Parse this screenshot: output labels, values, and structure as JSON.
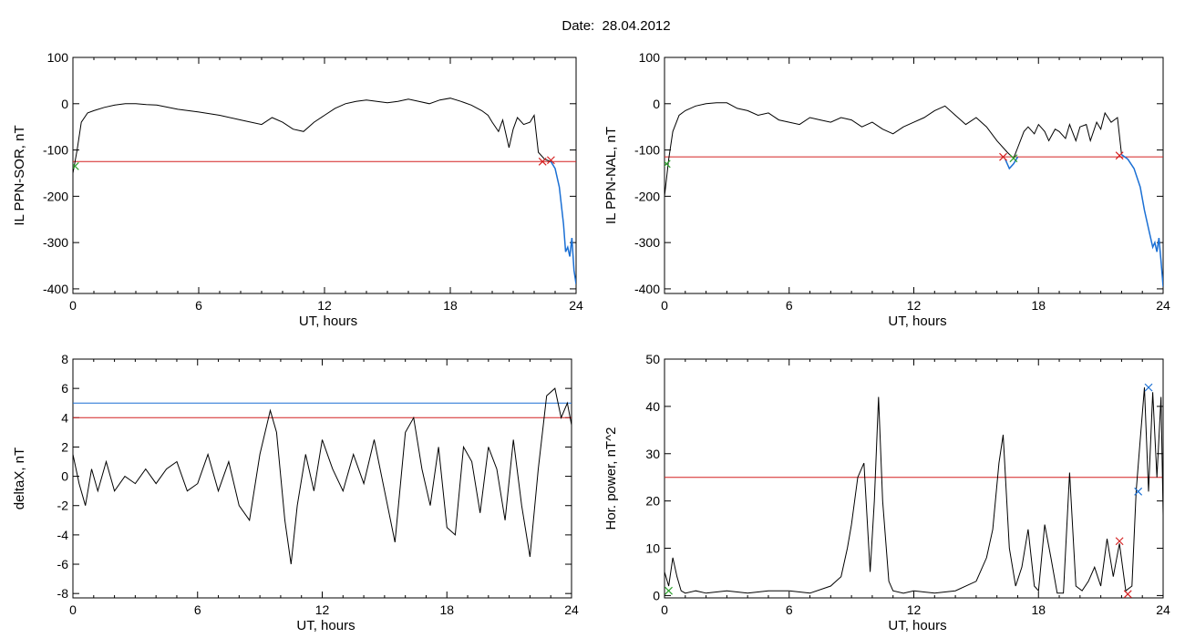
{
  "figure_title": "Date:  28.04.2012",
  "colors": {
    "threshold_red": "#d42020",
    "threshold_blue": "#1a6fd4",
    "trace_blue": "#1a6fd4",
    "marker_green": "#2ca02c",
    "trace": "#000000"
  },
  "chart_data": [
    {
      "type": "line",
      "xlabel": "UT, hours",
      "ylabel": "IL PPN-SOR, nT",
      "xlim": [
        0,
        24
      ],
      "ylim": [
        -410,
        100
      ],
      "xticks": [
        0,
        6,
        12,
        18,
        24
      ],
      "yticks": [
        100,
        0,
        -100,
        -200,
        -300,
        -400
      ],
      "x": [
        0,
        0.2,
        0.4,
        0.7,
        1.0,
        1.5,
        2.0,
        2.5,
        3.0,
        3.5,
        4.0,
        5.0,
        6.0,
        7.0,
        8.0,
        9.0,
        9.5,
        10.0,
        10.5,
        11.0,
        11.5,
        12.0,
        12.5,
        13.0,
        13.5,
        14.0,
        14.5,
        15.0,
        15.5,
        16.0,
        16.5,
        17.0,
        17.5,
        18.0,
        18.5,
        19.0,
        19.5,
        19.8,
        20.0,
        20.3,
        20.5,
        20.8,
        21.0,
        21.2,
        21.5,
        21.8,
        22.0,
        22.2,
        22.5,
        22.8
      ],
      "y": [
        -150,
        -100,
        -40,
        -20,
        -15,
        -8,
        -3,
        0,
        0,
        -2,
        -3,
        -12,
        -18,
        -25,
        -35,
        -45,
        -30,
        -40,
        -55,
        -60,
        -40,
        -25,
        -10,
        0,
        5,
        8,
        5,
        2,
        5,
        10,
        5,
        0,
        8,
        12,
        5,
        -3,
        -15,
        -25,
        -40,
        -60,
        -35,
        -95,
        -55,
        -30,
        -45,
        -40,
        -25,
        -105,
        -120,
        -125
      ],
      "series": [
        {
          "color": "#1a6fd4",
          "x": [
            22.8,
            23.0,
            23.2,
            23.4,
            23.5,
            23.6,
            23.7,
            23.8,
            23.9,
            24.0
          ],
          "y": [
            -125,
            -140,
            -180,
            -260,
            -320,
            -310,
            -330,
            -290,
            -360,
            -390
          ]
        }
      ],
      "hlines": [
        {
          "y": -125,
          "color": "#d42020"
        }
      ],
      "markers": [
        {
          "x": 0.1,
          "y": -135,
          "color": "#2ca02c"
        },
        {
          "x": 22.4,
          "y": -125,
          "color": "#d42020"
        },
        {
          "x": 22.8,
          "y": -122,
          "color": "#d42020"
        }
      ]
    },
    {
      "type": "line",
      "xlabel": "UT, hours",
      "ylabel": "IL PPN-NAL, nT",
      "xlim": [
        0,
        24
      ],
      "ylim": [
        -410,
        100
      ],
      "xticks": [
        0,
        6,
        12,
        18,
        24
      ],
      "yticks": [
        100,
        0,
        -100,
        -200,
        -300,
        -400
      ],
      "x": [
        0,
        0.2,
        0.4,
        0.7,
        1.0,
        1.5,
        2.0,
        2.5,
        3.0,
        3.5,
        4.0,
        4.5,
        5.0,
        5.5,
        6.0,
        6.5,
        7.0,
        7.5,
        8.0,
        8.5,
        9.0,
        9.5,
        10.0,
        10.5,
        11.0,
        11.5,
        12.0,
        12.5,
        13.0,
        13.5,
        14.0,
        14.5,
        15.0,
        15.5,
        16.0,
        16.5,
        16.8,
        17.0,
        17.3,
        17.5,
        17.8,
        18.0,
        18.3,
        18.5,
        18.8,
        19.0,
        19.3,
        19.5,
        19.8,
        20.0,
        20.3,
        20.5,
        20.8,
        21.0,
        21.2,
        21.5,
        21.8,
        22.0
      ],
      "y": [
        -200,
        -120,
        -60,
        -25,
        -15,
        -5,
        0,
        2,
        2,
        -10,
        -15,
        -25,
        -20,
        -35,
        -40,
        -45,
        -30,
        -35,
        -40,
        -30,
        -35,
        -50,
        -40,
        -55,
        -65,
        -50,
        -40,
        -30,
        -15,
        -5,
        -25,
        -45,
        -30,
        -50,
        -80,
        -105,
        -118,
        -95,
        -60,
        -50,
        -65,
        -45,
        -60,
        -80,
        -55,
        -60,
        -75,
        -45,
        -80,
        -50,
        -45,
        -80,
        -40,
        -55,
        -20,
        -40,
        -30,
        -110
      ],
      "series": [
        {
          "color": "#1a6fd4",
          "x": [
            22.0,
            22.3,
            22.6,
            22.9,
            23.1,
            23.3,
            23.5,
            23.6,
            23.7,
            23.8,
            23.9,
            24.0
          ],
          "y": [
            -110,
            -120,
            -140,
            -180,
            -230,
            -270,
            -310,
            -300,
            -320,
            -290,
            -340,
            -395
          ]
        },
        {
          "color": "#1a6fd4",
          "x": [
            16.4,
            16.6,
            16.8,
            17.0
          ],
          "y": [
            -120,
            -140,
            -130,
            -115
          ]
        }
      ],
      "hlines": [
        {
          "y": -115,
          "color": "#d42020"
        }
      ],
      "markers": [
        {
          "x": 0.1,
          "y": -130,
          "color": "#2ca02c"
        },
        {
          "x": 16.3,
          "y": -115,
          "color": "#d42020"
        },
        {
          "x": 16.8,
          "y": -118,
          "color": "#2ca02c"
        },
        {
          "x": 21.9,
          "y": -112,
          "color": "#d42020"
        }
      ]
    },
    {
      "type": "line",
      "xlabel": "UT, hours",
      "ylabel": "deltaX, nT",
      "xlim": [
        0,
        24
      ],
      "ylim": [
        -8.3,
        8
      ],
      "xticks": [
        0,
        6,
        12,
        18,
        24
      ],
      "yticks": [
        8,
        6,
        4,
        2,
        0,
        -2,
        -4,
        -6,
        -8
      ],
      "x": [
        0,
        0.3,
        0.6,
        0.9,
        1.2,
        1.6,
        2.0,
        2.5,
        3.0,
        3.5,
        4.0,
        4.5,
        5.0,
        5.5,
        6.0,
        6.5,
        7.0,
        7.5,
        8.0,
        8.5,
        9.0,
        9.5,
        9.8,
        10.2,
        10.5,
        10.8,
        11.2,
        11.6,
        12.0,
        12.5,
        13.0,
        13.5,
        14.0,
        14.5,
        15.0,
        15.5,
        16.0,
        16.4,
        16.8,
        17.2,
        17.6,
        18.0,
        18.4,
        18.8,
        19.2,
        19.6,
        20.0,
        20.4,
        20.8,
        21.2,
        21.6,
        22.0,
        22.4,
        22.8,
        23.2,
        23.5,
        23.8,
        24.0
      ],
      "y": [
        1.5,
        -0.5,
        -2.0,
        0.5,
        -1.0,
        1.0,
        -1.0,
        0.0,
        -0.5,
        0.5,
        -0.5,
        0.5,
        1.0,
        -1.0,
        -0.5,
        1.5,
        -1.0,
        1.0,
        -2.0,
        -3.0,
        1.5,
        4.5,
        3.0,
        -3.0,
        -6.0,
        -2.0,
        1.5,
        -1.0,
        2.5,
        0.5,
        -1.0,
        1.5,
        -0.5,
        2.5,
        -1.0,
        -4.5,
        3.0,
        4.0,
        0.5,
        -2.0,
        2.0,
        -3.5,
        -4.0,
        2.0,
        1.0,
        -2.5,
        2.0,
        0.5,
        -3.0,
        2.5,
        -2.0,
        -5.5,
        0.5,
        5.5,
        6.0,
        4.0,
        5.0,
        3.5
      ],
      "hlines": [
        {
          "y": 5,
          "color": "#1a6fd4"
        },
        {
          "y": 4,
          "color": "#d42020"
        }
      ],
      "markers": []
    },
    {
      "type": "line",
      "xlabel": "UT, hours",
      "ylabel": "Hor. power, nT^2",
      "xlim": [
        0,
        24
      ],
      "ylim": [
        -0.5,
        50
      ],
      "xticks": [
        0,
        6,
        12,
        18,
        24
      ],
      "yticks": [
        50,
        40,
        30,
        20,
        10,
        0
      ],
      "x": [
        0,
        0.2,
        0.4,
        0.6,
        0.8,
        1.0,
        1.5,
        2.0,
        3.0,
        4.0,
        5.0,
        6.0,
        7.0,
        8.0,
        8.5,
        8.8,
        9.0,
        9.3,
        9.6,
        9.9,
        10.1,
        10.3,
        10.5,
        10.8,
        11.0,
        11.5,
        12.0,
        13.0,
        14.0,
        15.0,
        15.5,
        15.8,
        16.1,
        16.3,
        16.6,
        16.9,
        17.2,
        17.5,
        17.8,
        18.0,
        18.3,
        18.6,
        18.9,
        19.2,
        19.5,
        19.8,
        20.1,
        20.4,
        20.7,
        21.0,
        21.3,
        21.6,
        21.9,
        22.2,
        22.5,
        22.7,
        22.9,
        23.1,
        23.3,
        23.5,
        23.7,
        23.9,
        24.0
      ],
      "y": [
        5,
        2,
        8,
        4,
        1,
        0.5,
        1,
        0.5,
        1,
        0.5,
        1,
        1,
        0.5,
        2,
        4,
        10,
        15,
        25,
        28,
        5,
        20,
        42,
        20,
        3,
        1,
        0.5,
        1,
        0.5,
        1,
        3,
        8,
        14,
        28,
        34,
        10,
        2,
        6,
        14,
        2,
        1,
        15,
        8,
        0.5,
        0.5,
        26,
        2,
        1,
        3,
        6,
        2,
        12,
        4,
        11,
        1,
        2,
        22,
        33,
        44,
        22,
        43,
        25,
        42,
        17
      ],
      "hlines": [
        {
          "y": 25,
          "color": "#d42020"
        }
      ],
      "markers": [
        {
          "x": 0.2,
          "y": 1,
          "color": "#2ca02c"
        },
        {
          "x": 21.9,
          "y": 11.5,
          "color": "#d42020"
        },
        {
          "x": 22.3,
          "y": 0.3,
          "color": "#d42020"
        },
        {
          "x": 22.8,
          "y": 22,
          "color": "#1a6fd4"
        },
        {
          "x": 23.3,
          "y": 44,
          "color": "#1a6fd4"
        }
      ]
    }
  ]
}
